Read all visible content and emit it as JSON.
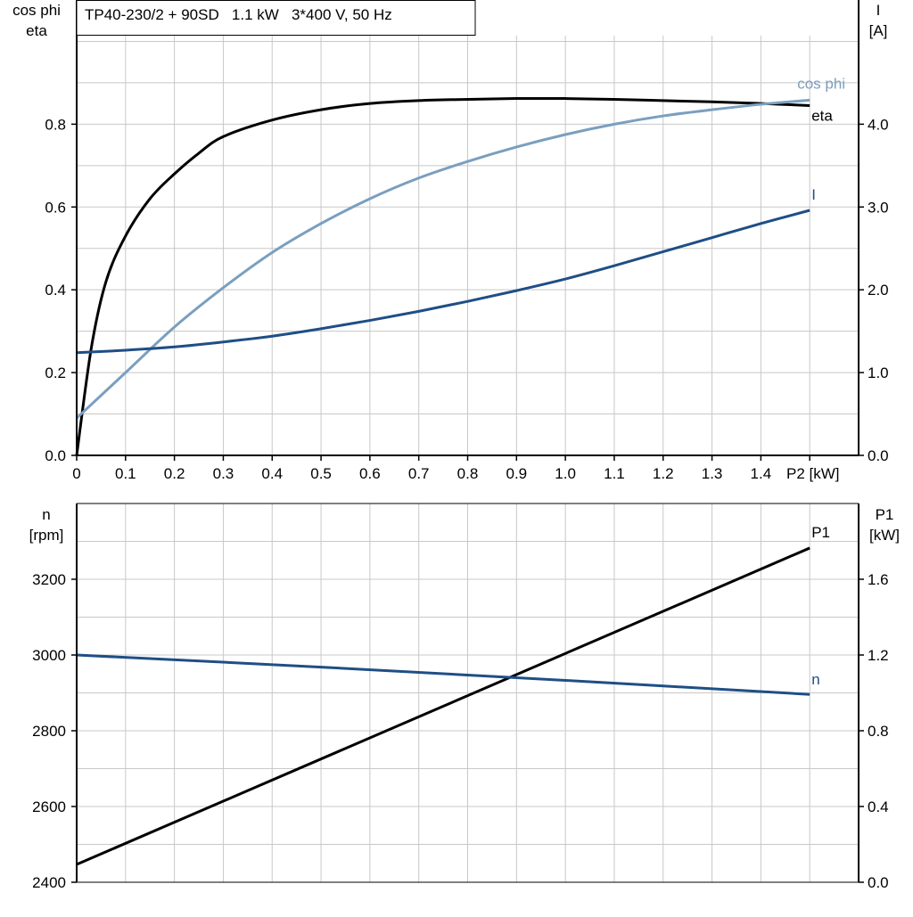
{
  "chart_data": [
    {
      "type": "line",
      "title": "TP40-230/2 + 90SD   1.1 kW   3*400 V, 50 Hz",
      "xlabel": "P2 [kW]",
      "ylabel_left": [
        "cos phi",
        "eta"
      ],
      "ylabel_right": [
        "I",
        "[A]"
      ],
      "xlim": [
        0,
        1.6
      ],
      "ylim_left": [
        0,
        1.1
      ],
      "ylim_right": [
        0,
        5.5
      ],
      "grid": true,
      "x_ticks": [
        "0",
        "0.1",
        "0.2",
        "0.3",
        "0.4",
        "0.5",
        "0.6",
        "0.7",
        "0.8",
        "0.9",
        "1.0",
        "1.1",
        "1.2",
        "1.3",
        "1.4"
      ],
      "y_ticks_left": [
        "0.0",
        "0.2",
        "0.4",
        "0.6",
        "0.8"
      ],
      "y_ticks_right": [
        "0.0",
        "1.0",
        "2.0",
        "3.0",
        "4.0"
      ],
      "series": [
        {
          "name": "eta",
          "axis": "left",
          "color": "#000000",
          "x": [
            0,
            0.03,
            0.06,
            0.1,
            0.15,
            0.2,
            0.25,
            0.3,
            0.4,
            0.5,
            0.6,
            0.7,
            0.8,
            0.9,
            1.0,
            1.1,
            1.2,
            1.3,
            1.4,
            1.5
          ],
          "y": [
            0,
            0.26,
            0.42,
            0.53,
            0.62,
            0.68,
            0.73,
            0.77,
            0.81,
            0.835,
            0.85,
            0.857,
            0.86,
            0.862,
            0.862,
            0.86,
            0.857,
            0.854,
            0.85,
            0.845
          ]
        },
        {
          "name": "cos phi",
          "axis": "left",
          "color": "#7a9fbf",
          "x": [
            0,
            0.1,
            0.2,
            0.3,
            0.4,
            0.5,
            0.6,
            0.7,
            0.8,
            0.9,
            1.0,
            1.1,
            1.2,
            1.3,
            1.4,
            1.5
          ],
          "y": [
            0.09,
            0.2,
            0.31,
            0.405,
            0.49,
            0.56,
            0.62,
            0.67,
            0.71,
            0.745,
            0.775,
            0.8,
            0.82,
            0.835,
            0.848,
            0.858
          ]
        },
        {
          "name": "I",
          "axis": "right",
          "color": "#1f4e86",
          "x": [
            0,
            0.1,
            0.2,
            0.3,
            0.4,
            0.5,
            0.6,
            0.7,
            0.8,
            0.9,
            1.0,
            1.1,
            1.2,
            1.3,
            1.4,
            1.5
          ],
          "y": [
            1.24,
            1.27,
            1.31,
            1.37,
            1.44,
            1.53,
            1.63,
            1.74,
            1.86,
            1.99,
            2.13,
            2.29,
            2.46,
            2.63,
            2.8,
            2.96
          ]
        }
      ]
    },
    {
      "type": "line",
      "xlim": [
        0,
        1.6
      ],
      "ylabel_left": [
        "n",
        "[rpm]"
      ],
      "ylabel_right": [
        "P1",
        "[kW]"
      ],
      "ylim_left": [
        2400,
        3400
      ],
      "ylim_right": [
        0,
        2.0
      ],
      "grid": true,
      "y_ticks_left": [
        "2400",
        "2600",
        "2800",
        "3000",
        "3200"
      ],
      "y_ticks_right": [
        "0.0",
        "0.4",
        "0.8",
        "1.2",
        "1.6"
      ],
      "series": [
        {
          "name": "P1",
          "axis": "right",
          "color": "#000000",
          "x": [
            0,
            1.5
          ],
          "y": [
            0.094,
            1.765
          ]
        },
        {
          "name": "n",
          "axis": "left",
          "color": "#1f4e86",
          "x": [
            0,
            0.5,
            1.0,
            1.5
          ],
          "y": [
            3000,
            2968,
            2933,
            2896
          ]
        }
      ]
    }
  ]
}
